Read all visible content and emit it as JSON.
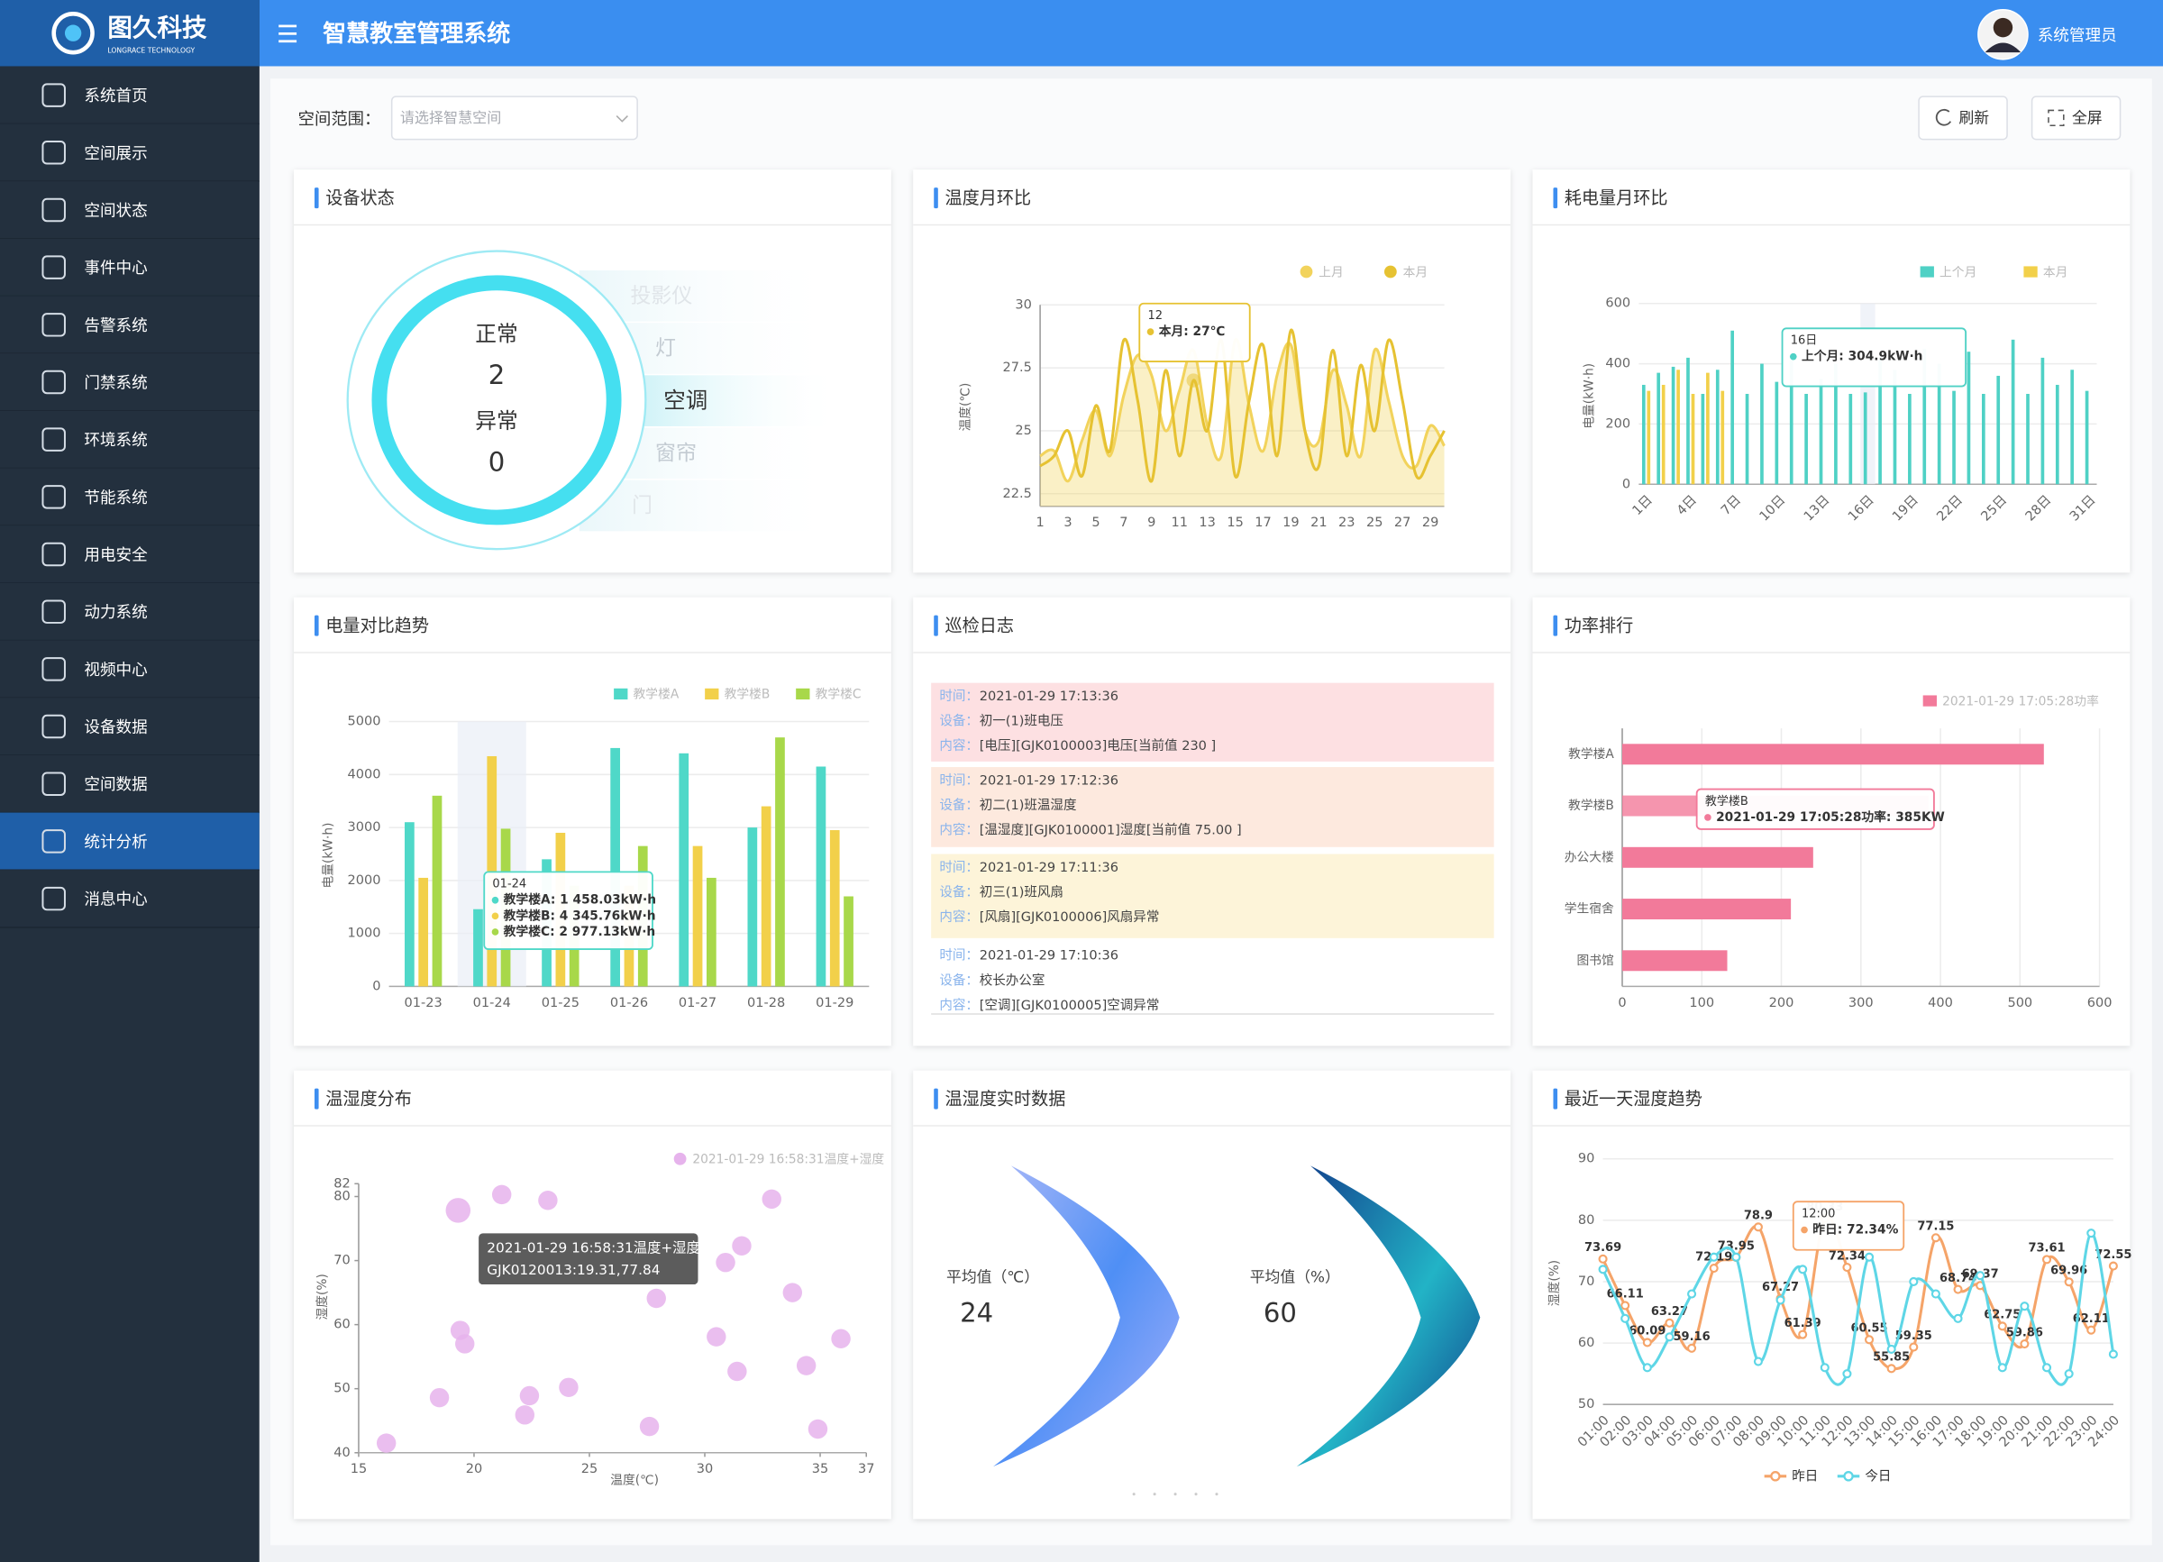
{
  "header": {
    "logo_text": "图久科技",
    "logo_subtext": "LONGRACE TECHNOLOGY",
    "title": "智慧教室管理系统",
    "user": "系统管理员"
  },
  "sidebar": {
    "items": [
      {
        "label": "系统首页"
      },
      {
        "label": "空间展示"
      },
      {
        "label": "空间状态"
      },
      {
        "label": "事件中心"
      },
      {
        "label": "告警系统"
      },
      {
        "label": "门禁系统"
      },
      {
        "label": "环境系统"
      },
      {
        "label": "节能系统"
      },
      {
        "label": "用电安全"
      },
      {
        "label": "动力系统"
      },
      {
        "label": "视频中心"
      },
      {
        "label": "设备数据"
      },
      {
        "label": "空间数据"
      },
      {
        "label": "统计分析",
        "active": true
      },
      {
        "label": "消息中心"
      }
    ]
  },
  "toolbar": {
    "scope_label": "空间范围：",
    "scope_placeholder": "请选择智慧空间",
    "refresh": "刷新",
    "fullscreen": "全屏"
  },
  "device_status": {
    "title": "设备状态",
    "normal_label": "正常",
    "normal": 2,
    "abnormal_label": "异常",
    "abnormal": 0,
    "devices": [
      {
        "label": "投影仪"
      },
      {
        "label": "灯"
      },
      {
        "label": "空调",
        "active": true
      },
      {
        "label": "窗帘"
      },
      {
        "label": "门"
      }
    ]
  },
  "inspection_log": {
    "title": "巡检日志",
    "field_labels": [
      "时间：",
      "设备：",
      "内容："
    ],
    "entries": [
      {
        "time": "2021-01-29 17:13:36",
        "device": "初一(1)班电压",
        "content": "[电压][GJK0100003]电压[当前值 230 ]",
        "color": "#fde0e2"
      },
      {
        "time": "2021-01-29 17:12:36",
        "device": "初二(1)班温湿度",
        "content": "[温湿度][GJK0100001]湿度[当前值 75.00 ]",
        "color": "#fde9de"
      },
      {
        "time": "2021-01-29 17:11:36",
        "device": "初三(1)班风扇",
        "content": "[风扇][GJK0100006]风扇异常",
        "color": "#fdf4d9"
      },
      {
        "time": "2021-01-29 17:10:36",
        "device": "校长办公室",
        "content": "[空调][GJK0100005]空调异常"
      }
    ]
  },
  "realtime_data": {
    "title": "温湿度实时数据",
    "items": [
      {
        "label": "平均值（℃）",
        "value": 24
      },
      {
        "label": "平均值（%）",
        "value": 60
      }
    ]
  },
  "chart_data": [
    {
      "type": "line",
      "title": "温度月环比",
      "smooth": true,
      "grid": true,
      "legend": "top-right",
      "categories": [
        "1",
        null,
        "3",
        null,
        "5",
        null,
        "7",
        null,
        "9",
        null,
        "11",
        null,
        "13",
        null,
        "15",
        null,
        "17",
        null,
        "19",
        null,
        "21",
        null,
        "23",
        null,
        "25",
        null,
        "27",
        null,
        "29",
        null
      ],
      "series": [
        {
          "name": "上月",
          "color": "#f2d35c",
          "area": true,
          "values": [
            24,
            24.2,
            23,
            24.6,
            25.8,
            24,
            26.4,
            28,
            27.2,
            25,
            26.6,
            28.2,
            25.2,
            24,
            28.6,
            26,
            24.2,
            27.2,
            28.4,
            25,
            24.6,
            27.4,
            26,
            24,
            28.2,
            26.2,
            24,
            23.6,
            25.2,
            24.4
          ]
        },
        {
          "name": "本月",
          "color": "#e6c232",
          "values": [
            23.6,
            24,
            25,
            23.2,
            26,
            24.2,
            28.6,
            26.2,
            23,
            27.4,
            24,
            27,
            25,
            28.6,
            23.2,
            26.2,
            28.4,
            24,
            29,
            25,
            23.6,
            28.2,
            24,
            27.6,
            25,
            28.6,
            26.2,
            23.2,
            24,
            25
          ]
        }
      ],
      "ylim": [
        22,
        30
      ],
      "yticks": [
        22.5,
        25,
        27.5,
        30
      ],
      "y_label": "温度(℃)",
      "tooltip": {
        "title": "12",
        "lines": [
          "本月: 27℃"
        ]
      }
    },
    {
      "type": "bar",
      "title": "耗电量月环比",
      "grid": true,
      "legend": "top-right",
      "categories": [
        "1日",
        null,
        null,
        "4日",
        null,
        null,
        "7日",
        null,
        null,
        "10日",
        null,
        null,
        "13日",
        null,
        null,
        "16日",
        null,
        null,
        "19日",
        null,
        null,
        "22日",
        null,
        null,
        "25日",
        null,
        null,
        "28日",
        null,
        null,
        "31日"
      ],
      "series": [
        {
          "name": "上个月",
          "color": "#4fd1c5",
          "values": [
            330,
            370,
            390,
            420,
            300,
            380,
            510,
            300,
            400,
            340,
            430,
            300,
            350,
            400,
            300,
            304.9,
            420,
            380,
            300,
            450,
            400,
            310,
            440,
            300,
            360,
            480,
            300,
            420,
            330,
            380,
            310
          ]
        },
        {
          "name": "本月",
          "color": "#f2d04a",
          "values": [
            310,
            330,
            380,
            300,
            370,
            310,
            null,
            null,
            null,
            null,
            null,
            null,
            null,
            null,
            null,
            null,
            null,
            null,
            null,
            null,
            null,
            null,
            null,
            null,
            null,
            null,
            null,
            null,
            null,
            null,
            null
          ]
        }
      ],
      "ylim": [
        0,
        600
      ],
      "yticks": [
        0,
        200,
        400,
        600
      ],
      "y_label": "电量(kW·h)",
      "tooltip": {
        "title": "16日",
        "lines": [
          "上个月: 304.9kW·h"
        ]
      }
    },
    {
      "type": "bar",
      "title": "电量对比趋势",
      "grid": true,
      "legend": "top-right",
      "categories": [
        "01-23",
        "01-24",
        "01-25",
        "01-26",
        "01-27",
        "01-28",
        "01-29"
      ],
      "series": [
        {
          "name": "教学楼A",
          "color": "#4fd8c8",
          "values": [
            3100,
            1458.03,
            2400,
            4500,
            4400,
            3000,
            4150
          ]
        },
        {
          "name": "教学楼B",
          "color": "#f2d04a",
          "values": [
            2050,
            4345.76,
            2900,
            1900,
            2650,
            3400,
            2950
          ]
        },
        {
          "name": "教学楼C",
          "color": "#a8d84a",
          "values": [
            3600,
            2977.13,
            1900,
            2650,
            2050,
            4700,
            1700
          ]
        }
      ],
      "ylim": [
        0,
        5000
      ],
      "yticks": [
        0,
        1000,
        2000,
        3000,
        4000,
        5000
      ],
      "y_label": "电量(kW·h)",
      "tooltip": {
        "title": "01-24",
        "lines": [
          "教学楼A: 1 458.03kW·h",
          "教学楼B: 4 345.76kW·h",
          "教学楼C: 2 977.13kW·h"
        ]
      }
    },
    {
      "type": "bar",
      "orientation": "horizontal",
      "title": "功率排行",
      "grid": true,
      "legend": "top-right",
      "categories": [
        "教学楼A",
        "教学楼B",
        "办公大楼",
        "学生宿舍",
        "图书馆"
      ],
      "series": [
        {
          "name": "2021-01-29 17:05:28功率",
          "color": "#f27a9a",
          "values": [
            530,
            385,
            240,
            212,
            132
          ]
        }
      ],
      "xlim": [
        0,
        600
      ],
      "xticks": [
        0,
        100,
        200,
        300,
        400,
        500,
        600
      ],
      "tooltip": {
        "title": "教学楼B",
        "lines": [
          "2021-01-29 17:05:28功率: 385KW"
        ]
      }
    },
    {
      "type": "scatter",
      "title": "温湿度分布",
      "grid": false,
      "legend": "top-right",
      "series": [
        {
          "name": "2021-01-29 16:58:31温度+湿度",
          "color": "#e6b3ec",
          "x": [
            16.2,
            18.5,
            19.31,
            19.4,
            19.6,
            21.2,
            22.2,
            22.4,
            23.2,
            24.1,
            27.6,
            27.9,
            30.5,
            30.9,
            31.4,
            31.6,
            32.9,
            33.8,
            34.4,
            34.9,
            35.9
          ],
          "values": [
            41.5,
            48.6,
            77.84,
            59.1,
            57,
            80.3,
            45.9,
            48.9,
            79.4,
            50.2,
            44.1,
            64.1,
            58.1,
            69.7,
            52.7,
            72.3,
            79.6,
            65,
            53.6,
            43.7,
            57.8
          ]
        }
      ],
      "xlim": [
        15,
        37
      ],
      "xticks": [
        15,
        20,
        25,
        30,
        35,
        37
      ],
      "ylim": [
        40,
        82
      ],
      "yticks": [
        40,
        50,
        60,
        70,
        80,
        82
      ],
      "x_label": "温度(℃)",
      "y_label": "湿度(%)",
      "tooltip": {
        "title": "2021-01-29 16:58:31温度+湿度",
        "lines": [
          "GJK0120013:19.31,77.84"
        ]
      }
    },
    {
      "type": "line",
      "title": "最近一天湿度趋势",
      "smooth": true,
      "grid": true,
      "legend": "bottom",
      "categories": [
        "01:00",
        "02:00",
        "03:00",
        "04:00",
        "05:00",
        "06:00",
        "07:00",
        "08:00",
        "09:00",
        "10:00",
        "11:00",
        "12:00",
        "13:00",
        "14:00",
        "15:00",
        "16:00",
        "17:00",
        "18:00",
        "19:00",
        "20:00",
        "21:00",
        "22:00",
        "23:00",
        "24:00"
      ],
      "series": [
        {
          "name": "昨日",
          "color": "#f5a469",
          "labels": true,
          "values": [
            73.69,
            66.11,
            60.09,
            63.27,
            59.16,
            72.19,
            73.95,
            78.9,
            67.27,
            61.39,
            80.33,
            72.34,
            60.55,
            55.85,
            59.35,
            77.15,
            68.74,
            69.37,
            62.75,
            59.86,
            73.61,
            69.96,
            62.11,
            72.55
          ]
        },
        {
          "name": "今日",
          "color": "#5ed6e6",
          "values": [
            72,
            64,
            56,
            61,
            68,
            74,
            74,
            57,
            67,
            72,
            56,
            55,
            74,
            59,
            70,
            68,
            64,
            71,
            56,
            66,
            56,
            55,
            77.9,
            58.18
          ]
        }
      ],
      "ylim": [
        50,
        90
      ],
      "yticks": [
        50,
        60,
        70,
        80,
        90
      ],
      "y_label": "湿度(%)",
      "tooltip": {
        "title": "12:00",
        "lines": [
          "昨日: 72.34%"
        ]
      }
    }
  ]
}
